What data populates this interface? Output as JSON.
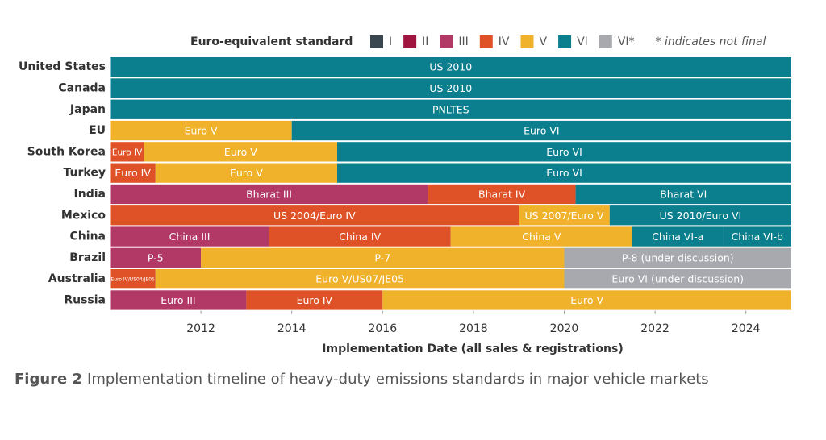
{
  "chart_data": {
    "type": "timeline",
    "legend": {
      "title": "Euro-equivalent standard",
      "items": [
        {
          "name": "I",
          "color": "#3a4650"
        },
        {
          "name": "II",
          "color": "#a01440"
        },
        {
          "name": "III",
          "color": "#b23866"
        },
        {
          "name": "IV",
          "color": "#df5228"
        },
        {
          "name": "V",
          "color": "#f0b12b"
        },
        {
          "name": "VI",
          "color": "#0b7f8d"
        },
        {
          "name": "VI*",
          "color": "#a8a9ae"
        }
      ],
      "note": "* indicates not final"
    },
    "rows": [
      {
        "name": "United States",
        "segments": [
          {
            "start": 2010,
            "end": 2025,
            "standard": "VI",
            "label": "US 2010"
          }
        ]
      },
      {
        "name": "Canada",
        "segments": [
          {
            "start": 2010,
            "end": 2025,
            "standard": "VI",
            "label": "US 2010"
          }
        ]
      },
      {
        "name": "Japan",
        "segments": [
          {
            "start": 2010,
            "end": 2025,
            "standard": "VI",
            "label": "PNLTES"
          }
        ]
      },
      {
        "name": "EU",
        "segments": [
          {
            "start": 2010,
            "end": 2014,
            "standard": "V",
            "label": "Euro V"
          },
          {
            "start": 2014,
            "end": 2025,
            "standard": "VI",
            "label": "Euro VI"
          }
        ]
      },
      {
        "name": "South Korea",
        "segments": [
          {
            "start": 2010,
            "end": 2010.75,
            "standard": "IV",
            "label": "Euro IV"
          },
          {
            "start": 2010.75,
            "end": 2015,
            "standard": "V",
            "label": "Euro V"
          },
          {
            "start": 2015,
            "end": 2025,
            "standard": "VI",
            "label": "Euro VI"
          }
        ]
      },
      {
        "name": "Turkey",
        "segments": [
          {
            "start": 2010,
            "end": 2011,
            "standard": "IV",
            "label": "Euro IV"
          },
          {
            "start": 2011,
            "end": 2015,
            "standard": "V",
            "label": "Euro V"
          },
          {
            "start": 2015,
            "end": 2025,
            "standard": "VI",
            "label": "Euro VI"
          }
        ]
      },
      {
        "name": "India",
        "segments": [
          {
            "start": 2010,
            "end": 2017,
            "standard": "III",
            "label": "Bharat III"
          },
          {
            "start": 2017,
            "end": 2020.25,
            "standard": "IV",
            "label": "Bharat IV"
          },
          {
            "start": 2020.25,
            "end": 2025,
            "standard": "VI",
            "label": "Bharat VI"
          }
        ]
      },
      {
        "name": "Mexico",
        "segments": [
          {
            "start": 2010,
            "end": 2019,
            "standard": "IV",
            "label": "US 2004/Euro IV"
          },
          {
            "start": 2019,
            "end": 2021,
            "standard": "V",
            "label": "US 2007/Euro V"
          },
          {
            "start": 2021,
            "end": 2025,
            "standard": "VI",
            "label": "US 2010/Euro VI"
          }
        ]
      },
      {
        "name": "China",
        "segments": [
          {
            "start": 2010,
            "end": 2013.5,
            "standard": "III",
            "label": "China III"
          },
          {
            "start": 2013.5,
            "end": 2017.5,
            "standard": "IV",
            "label": "China IV"
          },
          {
            "start": 2017.5,
            "end": 2021.5,
            "standard": "V",
            "label": "China V"
          },
          {
            "start": 2021.5,
            "end": 2023.5,
            "standard": "VI",
            "label": "China VI-a"
          },
          {
            "start": 2023.5,
            "end": 2025,
            "standard": "VI",
            "label": "China VI-b"
          }
        ]
      },
      {
        "name": "Brazil",
        "segments": [
          {
            "start": 2010,
            "end": 2012,
            "standard": "III",
            "label": "P-5"
          },
          {
            "start": 2012,
            "end": 2020,
            "standard": "V",
            "label": "P-7"
          },
          {
            "start": 2020,
            "end": 2025,
            "standard": "VI*",
            "label": "P-8 (under discussion)"
          }
        ]
      },
      {
        "name": "Australia",
        "segments": [
          {
            "start": 2010,
            "end": 2011,
            "standard": "IV",
            "label": "Euro IV/US04/JE05"
          },
          {
            "start": 2011,
            "end": 2020,
            "standard": "V",
            "label": "Euro V/US07/JE05"
          },
          {
            "start": 2020,
            "end": 2025,
            "standard": "VI*",
            "label": "Euro VI (under discussion)"
          }
        ]
      },
      {
        "name": "Russia",
        "segments": [
          {
            "start": 2010,
            "end": 2013,
            "standard": "III",
            "label": "Euro III"
          },
          {
            "start": 2013,
            "end": 2016,
            "standard": "IV",
            "label": "Euro IV"
          },
          {
            "start": 2016,
            "end": 2025,
            "standard": "V",
            "label": "Euro V"
          }
        ]
      }
    ],
    "xlim": [
      2010,
      2025
    ],
    "xticks": [
      2012,
      2014,
      2016,
      2018,
      2020,
      2022,
      2024
    ],
    "xlabel": "Implementation Date (all sales & registrations)",
    "caption": {
      "label": "Figure 2",
      "text": "Implementation timeline of heavy-duty emissions standards in major vehicle markets"
    }
  }
}
